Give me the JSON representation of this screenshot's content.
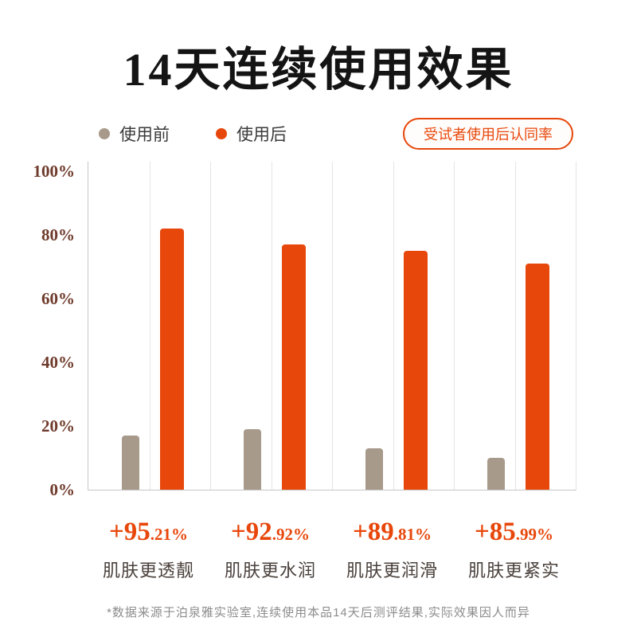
{
  "title": "14天连续使用效果",
  "legend": {
    "before_label": "使用前",
    "after_label": "使用后"
  },
  "badge_label": "受试者使用后认同率",
  "footnote": "*数据来源于泊泉雅实验室,连续使用本品14天后测评结果,实际效果因人而异",
  "colors": {
    "before": "#a89a8b",
    "after": "#e8470b",
    "axis_label": "#6e3a2b",
    "value_label": "#e8470b",
    "gridline": "#e4e4e4"
  },
  "chart_data": {
    "type": "bar",
    "title": "14天连续使用效果",
    "categories": [
      "肌肤更透靓",
      "肌肤更水润",
      "肌肤更润滑",
      "肌肤更紧实"
    ],
    "series": [
      {
        "name": "使用前",
        "color": "#a89a8b",
        "values": [
          17,
          19,
          13,
          10
        ]
      },
      {
        "name": "使用后",
        "color": "#e8470b",
        "values": [
          82,
          77,
          75,
          71
        ]
      }
    ],
    "value_labels": [
      {
        "main": "+95",
        "sub": ".21%"
      },
      {
        "main": "+92",
        "sub": ".92%"
      },
      {
        "main": "+89",
        "sub": ".81%"
      },
      {
        "main": "+85",
        "sub": ".99%"
      }
    ],
    "yticks": [
      {
        "value": 0,
        "label": "0%"
      },
      {
        "value": 20,
        "label": "20%"
      },
      {
        "value": 40,
        "label": "40%"
      },
      {
        "value": 60,
        "label": "60%"
      },
      {
        "value": 80,
        "label": "80%"
      },
      {
        "value": 100,
        "label": "100%"
      }
    ],
    "ylim": [
      0,
      100
    ],
    "grid": "vertical",
    "legend_position": "top-left"
  }
}
